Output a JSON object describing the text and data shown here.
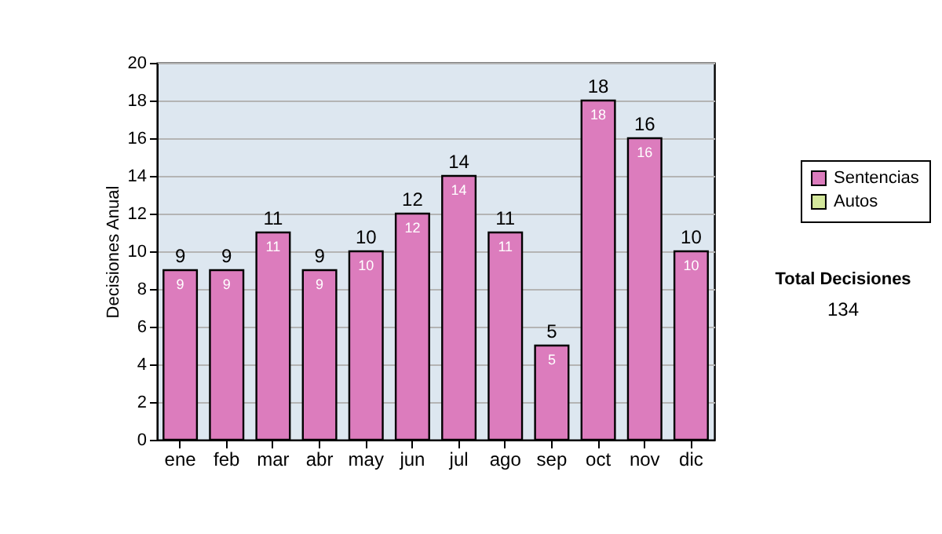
{
  "chart_data": {
    "type": "bar",
    "ylabel": "Decisiones Anual",
    "categories": [
      "ene",
      "feb",
      "mar",
      "abr",
      "may",
      "jun",
      "jul",
      "ago",
      "sep",
      "oct",
      "nov",
      "dic"
    ],
    "series": [
      {
        "name": "Sentencias",
        "color": "#dc7cbd",
        "values": [
          9,
          9,
          11,
          9,
          10,
          12,
          14,
          11,
          5,
          18,
          16,
          10
        ]
      },
      {
        "name": "Autos",
        "color": "#d4e89c",
        "values": [
          null,
          null,
          null,
          null,
          null,
          null,
          null,
          null,
          null,
          null,
          null,
          null
        ]
      }
    ],
    "data_labels": true,
    "totals": [
      "9",
      "9",
      "11",
      "9",
      "10",
      "12",
      "14",
      "11",
      "5",
      "18",
      "16",
      "10"
    ],
    "ylim": [
      0,
      20
    ],
    "yticks": [
      0,
      2,
      4,
      6,
      8,
      10,
      12,
      14,
      16,
      18,
      20
    ],
    "grid": "y",
    "legend": "right",
    "annotations": [
      "Total Decisiones",
      "134"
    ]
  }
}
